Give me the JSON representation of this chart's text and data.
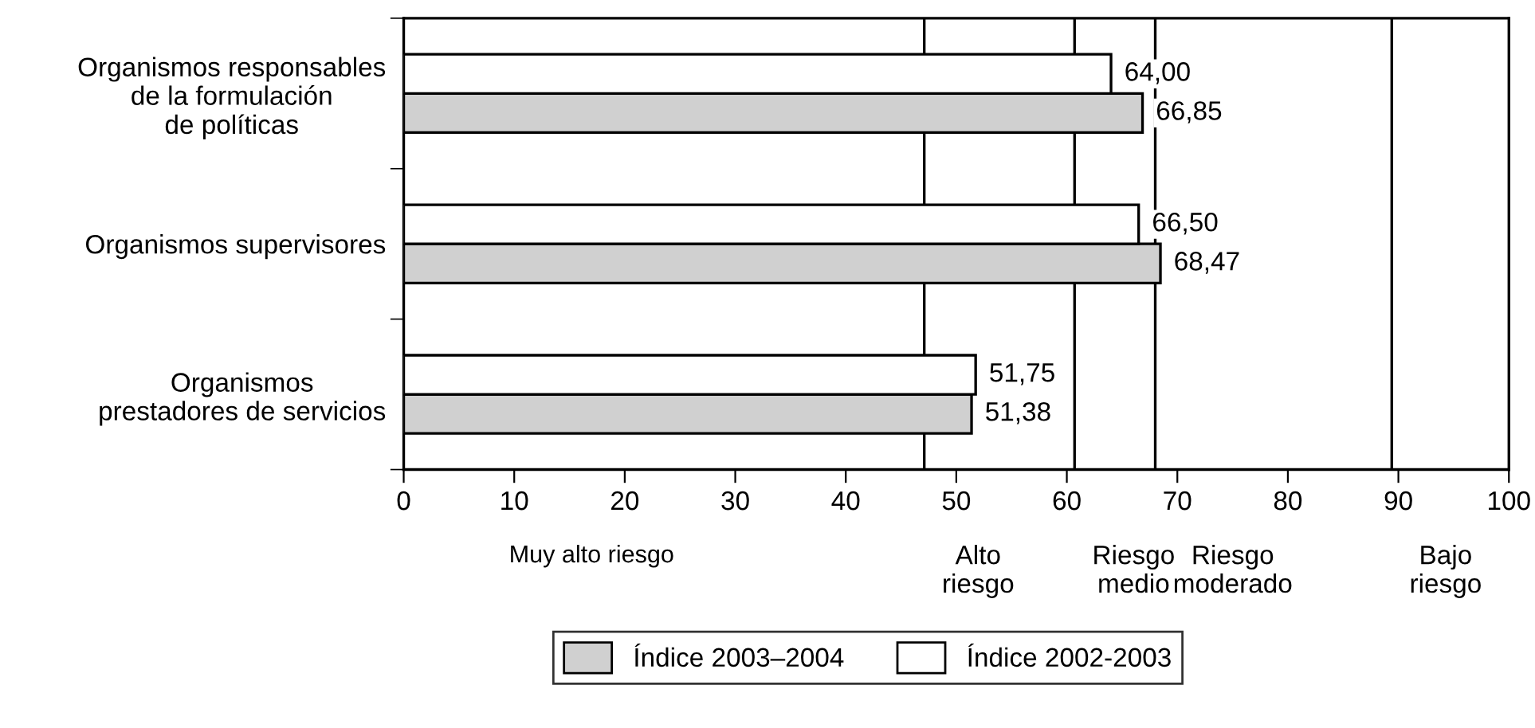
{
  "chart_data": {
    "type": "bar",
    "orientation": "horizontal",
    "categories": [
      "Organismos responsables\nde la formulación\nde políticas",
      "Organismos supervisores",
      "Organismos\nprestadores de servicios"
    ],
    "series": [
      {
        "name": "Índice 2003–2004",
        "color": "#d0d0d0",
        "values": [
          66.85,
          68.47,
          51.38
        ],
        "value_labels": [
          "66,85",
          "68,47",
          "51,38"
        ]
      },
      {
        "name": "Índice 2002-2003",
        "color": "#ffffff",
        "values": [
          64.0,
          66.5,
          51.75
        ],
        "value_labels": [
          "64,00",
          "66,50",
          "51,75"
        ]
      }
    ],
    "xlim": [
      0,
      100
    ],
    "xticks": [
      0,
      10,
      20,
      30,
      40,
      50,
      60,
      70,
      80,
      90,
      100
    ],
    "ref_lines": [
      {
        "axis": "x",
        "value": 47.1,
        "label": "Alto\nriesgo",
        "color": "#000000"
      },
      {
        "axis": "x",
        "value": 60.7,
        "label": "Riesgo\nmedio",
        "color": "#000000"
      },
      {
        "axis": "x",
        "value": 68.0,
        "label": "Riesgo\nmoderado",
        "color": "#000000"
      },
      {
        "axis": "x",
        "value": 89.4,
        "label": "Bajo\nriesgo",
        "color": "#000000"
      }
    ],
    "annotations": [
      "Muy alto riesgo"
    ],
    "legend": "bottom",
    "grid": false
  }
}
